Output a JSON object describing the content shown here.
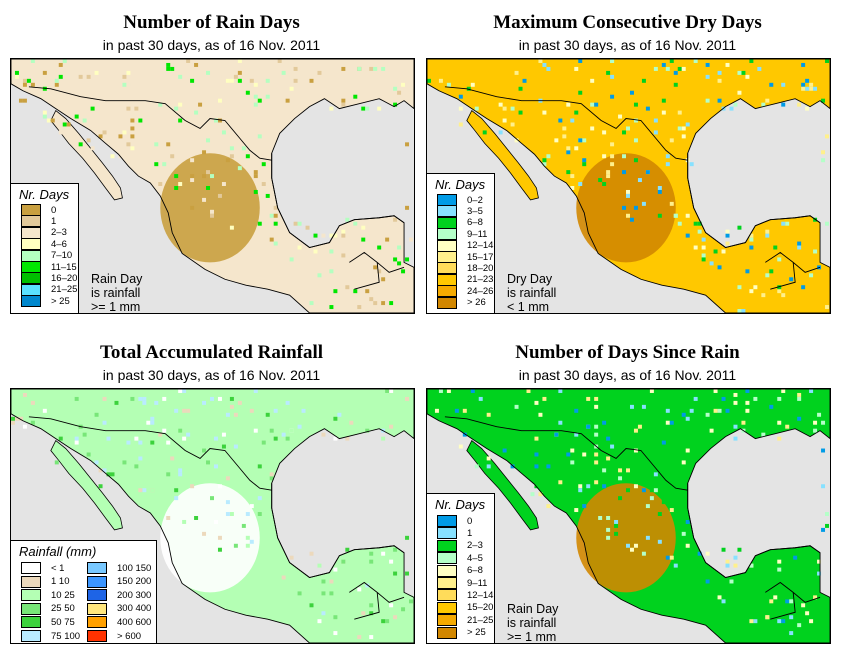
{
  "panels": [
    {
      "id": "rain-days",
      "title": "Number of Rain Days",
      "subtitle": "in past 30 days, as of  16 Nov. 2011",
      "legend": {
        "title": "Nr. Days",
        "items": [
          {
            "label": "0",
            "color": "#c9a040"
          },
          {
            "label": "1",
            "color": "#e2c99a"
          },
          {
            "label": "2–3",
            "color": "#f5e6cc"
          },
          {
            "label": "4–6",
            "color": "#ffffc0"
          },
          {
            "label": "7–10",
            "color": "#b4ffc0"
          },
          {
            "label": "11–15",
            "color": "#00e600"
          },
          {
            "label": "16–20",
            "color": "#00be00"
          },
          {
            "label": "21–25",
            "color": "#5ae1ff"
          },
          {
            "label": "> 25",
            "color": "#0087cd"
          }
        ],
        "note": [
          "Rain Day",
          "is rainfall",
          ">= 1 mm"
        ]
      }
    },
    {
      "id": "max-dry-days",
      "title": "Maximum Consecutive Dry Days",
      "subtitle": "in past 30 days, as of  16 Nov. 2011",
      "legend": {
        "title": "Nr. Days",
        "items": [
          {
            "label": "0–2",
            "color": "#009be6"
          },
          {
            "label": "3–5",
            "color": "#87e1ff"
          },
          {
            "label": "6–8",
            "color": "#00d21e"
          },
          {
            "label": "9–11",
            "color": "#b4ffc8"
          },
          {
            "label": "12–14",
            "color": "#ffffc3"
          },
          {
            "label": "15–17",
            "color": "#fff08c"
          },
          {
            "label": "18–20",
            "color": "#ffdc5a"
          },
          {
            "label": "21–23",
            "color": "#ffc800"
          },
          {
            "label": "24–26",
            "color": "#f5aa00"
          },
          {
            "label": "> 26",
            "color": "#d28700"
          }
        ],
        "note": [
          "Dry Day",
          "is rainfall",
          "< 1 mm"
        ]
      }
    },
    {
      "id": "total-rainfall",
      "title": "Total Accumulated Rainfall",
      "subtitle": "in past 30 days, as of  16 Nov. 2011",
      "legend": {
        "title": "Rainfall (mm)",
        "items": [
          {
            "label": "< 1",
            "color": "#ffffff"
          },
          {
            "label": "1   10",
            "color": "#ecd9bc"
          },
          {
            "label": "10   25",
            "color": "#b4ffb4"
          },
          {
            "label": "25   50",
            "color": "#78e678"
          },
          {
            "label": "50   75",
            "color": "#3cd23c"
          },
          {
            "label": "75   100",
            "color": "#b9ebff"
          },
          {
            "label": "100   150",
            "color": "#78c8ff"
          },
          {
            "label": "150   200",
            "color": "#3c96ff"
          },
          {
            "label": "200   300",
            "color": "#1e64e6"
          },
          {
            "label": "300   400",
            "color": "#ffe67d"
          },
          {
            "label": "400   600",
            "color": "#ffa000"
          },
          {
            "label": "> 600",
            "color": "#ff3200"
          }
        ]
      }
    },
    {
      "id": "days-since-rain",
      "title": "Number of Days Since Rain",
      "subtitle": "in past 30 days, as of  16 Nov. 2011",
      "legend": {
        "title": "Nr. Days",
        "items": [
          {
            "label": "0",
            "color": "#009be6"
          },
          {
            "label": "1",
            "color": "#87e1ff"
          },
          {
            "label": "2–3",
            "color": "#00d21e"
          },
          {
            "label": "4–5",
            "color": "#b4ffc8"
          },
          {
            "label": "6–8",
            "color": "#ffffc3"
          },
          {
            "label": "9–11",
            "color": "#fff08c"
          },
          {
            "label": "12–14",
            "color": "#ffdc5a"
          },
          {
            "label": "15–20",
            "color": "#ffc800"
          },
          {
            "label": "21–25",
            "color": "#f5aa00"
          },
          {
            "label": "> 25",
            "color": "#d28700"
          }
        ],
        "note": [
          "Rain Day",
          "is rainfall",
          ">= 1 mm"
        ]
      }
    }
  ]
}
